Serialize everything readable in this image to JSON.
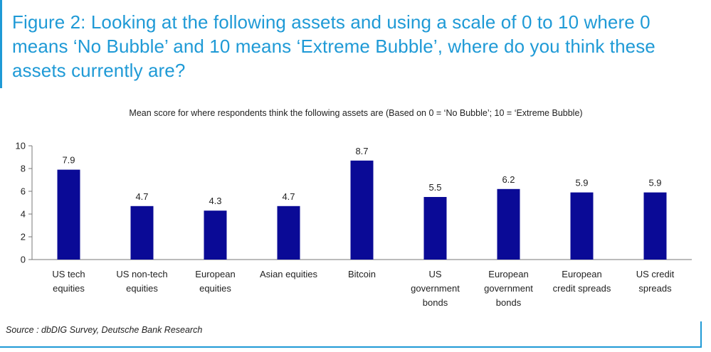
{
  "figure": {
    "title": "Figure 2: Looking at the following assets and using a scale of 0 to 10 where 0 means ‘No Bubble’ and 10 means ‘Extreme Bubble’, where do you think these assets currently are?",
    "source": "Source : dbDIG Survey, Deutsche Bank Research",
    "accent_color": "#1f9ad6"
  },
  "chart_data": {
    "type": "bar",
    "title": "Mean score for where respondents think the following assets are (Based on 0 = ‘No Bubble’; 10 = ‘Extreme Bubble)",
    "categories": [
      [
        "US tech",
        "equities"
      ],
      [
        "US non-tech",
        "equities"
      ],
      [
        "European",
        "equities"
      ],
      [
        "Asian equities"
      ],
      [
        "Bitcoin"
      ],
      [
        "US",
        "government",
        "bonds"
      ],
      [
        "European",
        "government",
        "bonds"
      ],
      [
        "European",
        "credit spreads"
      ],
      [
        "US credit",
        "spreads"
      ]
    ],
    "values": [
      7.9,
      4.7,
      4.3,
      4.7,
      8.7,
      5.5,
      6.2,
      5.9,
      5.9
    ],
    "value_labels": [
      "7.9",
      "4.7",
      "4.3",
      "4.7",
      "8.7",
      "5.5",
      "6.2",
      "5.9",
      "5.9"
    ],
    "ylim": [
      0,
      10
    ],
    "yticks": [
      0,
      2,
      4,
      6,
      8,
      10
    ],
    "xlabel": "",
    "ylabel": "",
    "grid": false,
    "bar_color": "#0a0a96"
  }
}
